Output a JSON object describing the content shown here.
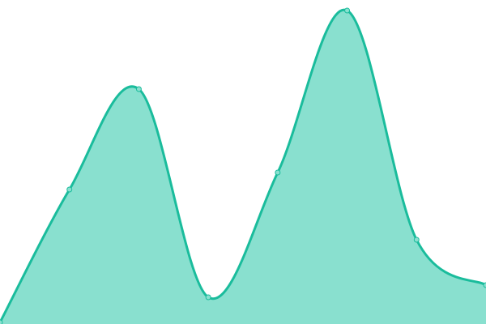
{
  "chart_data": {
    "type": "area",
    "x": [
      0,
      1,
      2,
      3,
      4,
      5,
      6,
      7
    ],
    "values": [
      2,
      166,
      290,
      33,
      187,
      387,
      104,
      48
    ],
    "ylim": [
      0,
      400
    ],
    "grid": false,
    "legend": "none",
    "curve": "smooth",
    "markers": true,
    "colors": {
      "line": "#1abc9c",
      "fill": "#89e0cf",
      "marker_fill": "#89e0cf",
      "marker_stroke": "#1abc9c"
    }
  }
}
